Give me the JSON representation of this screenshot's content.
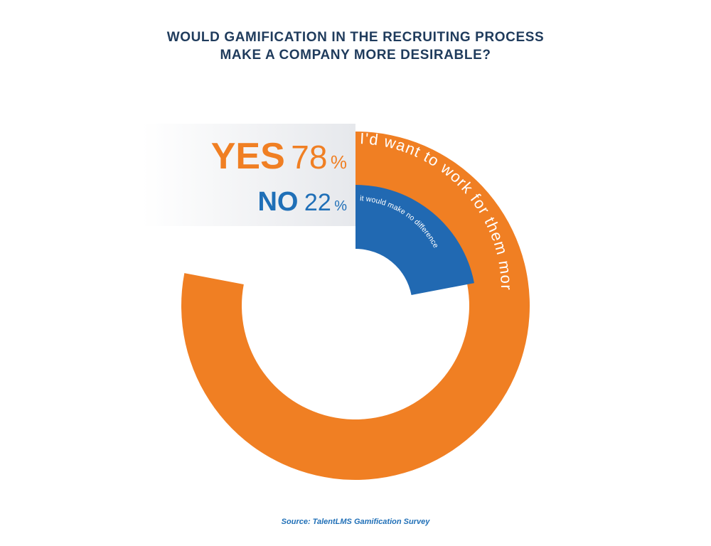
{
  "title": {
    "line1": "WOULD GAMIFICATION IN THE RECRUITING PROCESS",
    "line2": "MAKE A COMPANY MORE DESIRABLE?"
  },
  "chart_data": {
    "type": "pie",
    "title": "WOULD GAMIFICATION IN THE RECRUITING PROCESS MAKE A COMPANY MORE DESIRABLE?",
    "slices": [
      {
        "label": "YES",
        "value": 78,
        "value_text": "78%",
        "description": "I'd want to work for them more",
        "color": "#f07f23"
      },
      {
        "label": "NO",
        "value": 22,
        "value_text": "22%",
        "description": "it would make no difference",
        "color": "#2169b2"
      }
    ],
    "colors": {
      "label_gradient_start": "#e6e8ec",
      "background": "#ffffff"
    }
  },
  "labels": {
    "yes_word": "YES",
    "yes_number": "78",
    "yes_pct": "%",
    "no_word": "NO",
    "no_number": "22",
    "no_pct": "%"
  },
  "source": "Source: TalentLMS Gamification Survey"
}
